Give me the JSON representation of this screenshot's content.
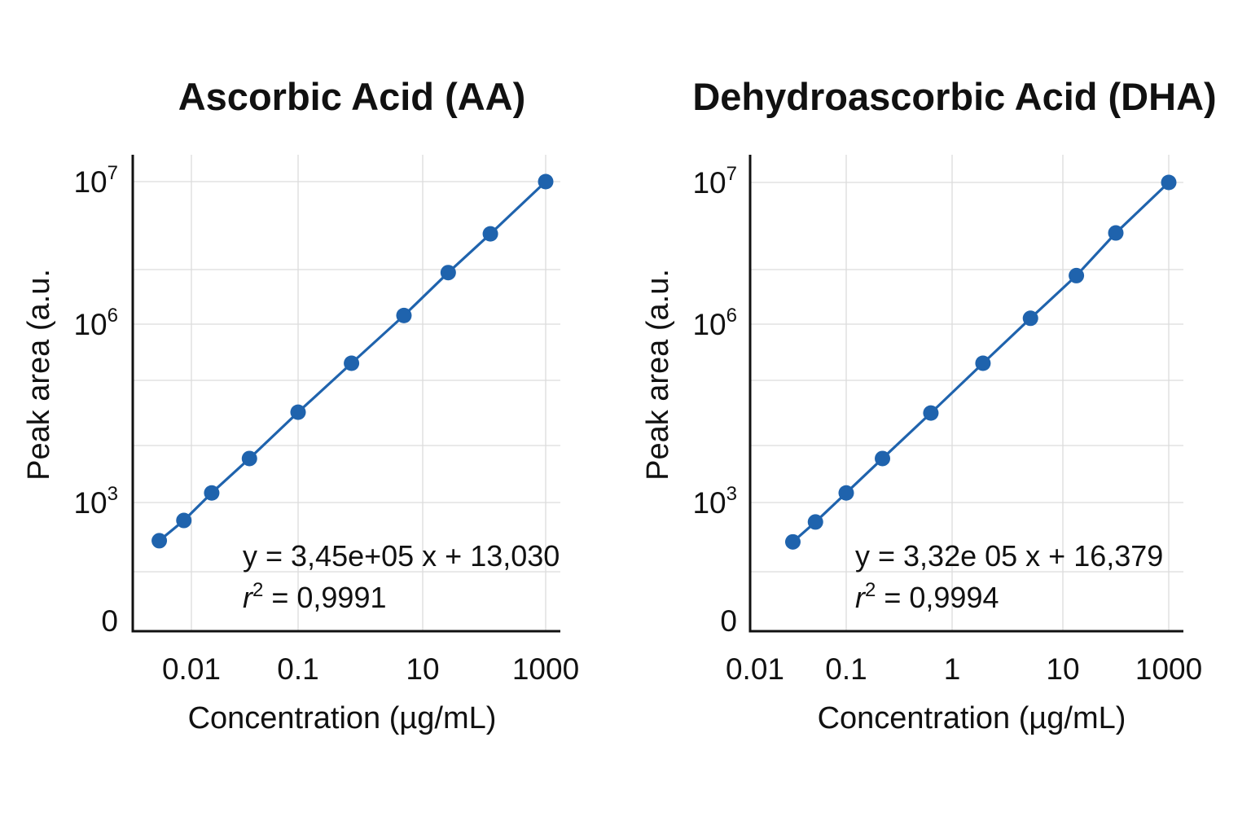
{
  "chart_data": [
    {
      "type": "line",
      "title": "Ascorbic Acid (AA)",
      "xlabel": "Concentration (µg/mL)",
      "ylabel": "Peak area (a.u.",
      "x_scale": "log (uneven tick spacing)",
      "y_scale": "log (uneven tick spacing)",
      "x_ticks": [
        {
          "value": 0.01,
          "label": "0.01"
        },
        {
          "value": 0.1,
          "label": "0.1"
        },
        {
          "value": 10,
          "label": "10"
        },
        {
          "value": 1000,
          "label": "1000"
        }
      ],
      "y_ticks": [
        {
          "value": 10000000,
          "base": "10",
          "exp": "7"
        },
        {
          "value": 1000000,
          "base": "10",
          "exp": "6"
        },
        {
          "value": 1000,
          "base": "10",
          "exp": "3"
        },
        {
          "value": 1,
          "base": "0",
          "exp": ""
        }
      ],
      "grid": true,
      "color": "#1f63ad",
      "x": [
        0.005,
        0.0085,
        0.0155,
        0.035,
        0.1,
        0.72,
        5.0,
        26,
        126,
        1000
      ],
      "y": [
        107,
        350,
        1450,
        5500,
        33000,
        220000,
        1150000,
        2300000,
        4300000,
        10000000
      ],
      "equation": "y = 3,45e+05 x + 13,030",
      "r2_label": "r",
      "r2_exp": "2",
      "r2_value": " = 0,9991"
    },
    {
      "type": "line",
      "title": "Dehydroascorbic Acid (DHA)",
      "xlabel": "Concentration (µg/mL)",
      "ylabel": "Peak area (a.u.",
      "x_scale": "log (uneven tick spacing)",
      "y_scale": "log (uneven tick spacing)",
      "x_ticks": [
        {
          "value": 0.01,
          "label": "0.01"
        },
        {
          "value": 0.1,
          "label": "0.1"
        },
        {
          "value": 1,
          "label": "1"
        },
        {
          "value": 10,
          "label": "10"
        },
        {
          "value": 1000,
          "label": "1000"
        }
      ],
      "y_ticks": [
        {
          "value": 10000000,
          "base": "10",
          "exp": "7"
        },
        {
          "value": 1000000,
          "base": "10",
          "exp": "6"
        },
        {
          "value": 1000,
          "base": "10",
          "exp": "3"
        },
        {
          "value": 1,
          "base": "0",
          "exp": ""
        }
      ],
      "grid": true,
      "color": "#1f63ad",
      "x": [
        0.026,
        0.046,
        0.1,
        0.22,
        0.63,
        1.9,
        5.1,
        18,
        100,
        1000
      ],
      "y": [
        100,
        320,
        1450,
        5500,
        32000,
        220000,
        1100000,
        2200000,
        4400000,
        10000000
      ],
      "equation": "y = 3,32e 05 x + 16,379",
      "r2_label": "r",
      "r2_exp": "2",
      "r2_value": " = 0,9994"
    }
  ]
}
